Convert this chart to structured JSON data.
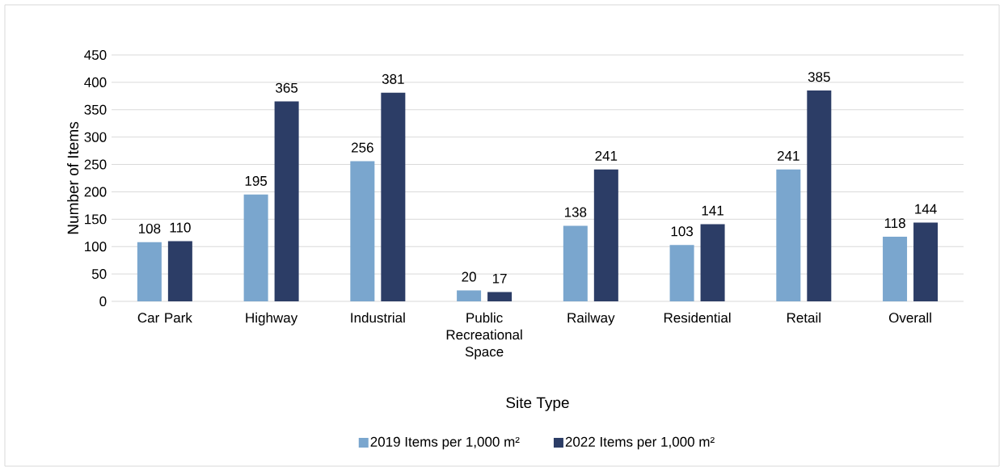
{
  "chart_data": {
    "type": "bar",
    "xlabel": "Site Type",
    "ylabel": "Number of Items",
    "categories": [
      "Car Park",
      "Highway",
      "Industrial",
      "Public Recreational Space",
      "Railway",
      "Residential",
      "Retail",
      "Overall"
    ],
    "series": [
      {
        "name": "2019 Items per 1,000 m²",
        "color": "#7aa6ce",
        "values": [
          108,
          195,
          256,
          20,
          138,
          103,
          241,
          118
        ]
      },
      {
        "name": "2022 Items per 1,000 m²",
        "color": "#2c3d66",
        "values": [
          110,
          365,
          381,
          17,
          241,
          141,
          385,
          144
        ]
      }
    ],
    "ylim": [
      0,
      450
    ],
    "yticks": [
      0,
      50,
      100,
      150,
      200,
      250,
      300,
      350,
      400,
      450
    ],
    "grid": "y",
    "legend": "bottom",
    "data_labels": true
  }
}
